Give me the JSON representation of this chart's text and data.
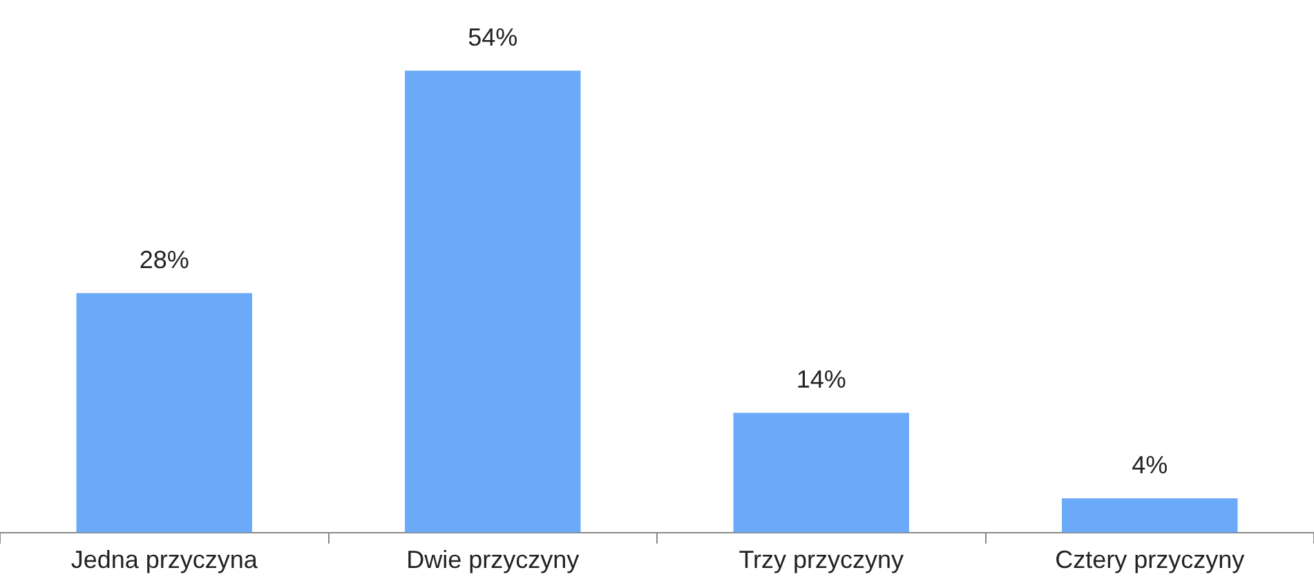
{
  "chart_data": {
    "type": "bar",
    "categories": [
      "Jedna przyczyna",
      "Dwie przyczyny",
      "Trzy przyczyny",
      "Cztery przyczyny"
    ],
    "values": [
      28,
      54,
      14,
      4
    ],
    "color": "#6aaaf8",
    "value_labels": [
      "28%",
      "54%",
      "14%",
      "4%"
    ],
    "legend": false,
    "grid": false
  }
}
